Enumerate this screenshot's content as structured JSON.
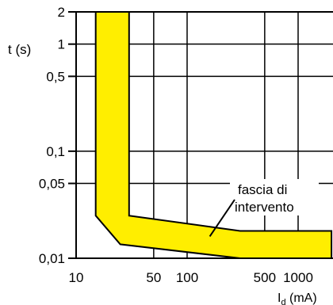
{
  "chart_data": {
    "type": "area",
    "title": "",
    "ylabel": "t (s)",
    "xlabel": "Id (mA)",
    "xlabel_main": "I",
    "xlabel_sub": "d",
    "xlabel_unit": " (mA)",
    "x_scale": "log",
    "y_scale": "log",
    "xlim": [
      10,
      2000
    ],
    "ylim": [
      0.01,
      2
    ],
    "x_ticks": [
      {
        "value": 10,
        "label": "10"
      },
      {
        "value": 50,
        "label": "50"
      },
      {
        "value": 100,
        "label": "100"
      },
      {
        "value": 500,
        "label": "500"
      },
      {
        "value": 1000,
        "label": "1000"
      }
    ],
    "y_ticks": [
      {
        "value": 2,
        "label": "2"
      },
      {
        "value": 1,
        "label": "1"
      },
      {
        "value": 0.5,
        "label": "0,5"
      },
      {
        "value": 0.1,
        "label": "0,1"
      },
      {
        "value": 0.05,
        "label": "0,05"
      },
      {
        "value": 0.01,
        "label": "0,01"
      }
    ],
    "grid": true,
    "band": {
      "name": "fascia di intervento",
      "color": "#ffee00",
      "polygon": [
        [
          15,
          2
        ],
        [
          30,
          2
        ],
        [
          30,
          0.025
        ],
        [
          300,
          0.018
        ],
        [
          2000,
          0.018
        ],
        [
          2000,
          0.01
        ],
        [
          300,
          0.01
        ],
        [
          25,
          0.0135
        ],
        [
          15,
          0.025
        ]
      ]
    },
    "annotation": {
      "lines": [
        "fascia di",
        "intervento"
      ],
      "arrow_to": [
        160,
        0.016
      ]
    }
  }
}
